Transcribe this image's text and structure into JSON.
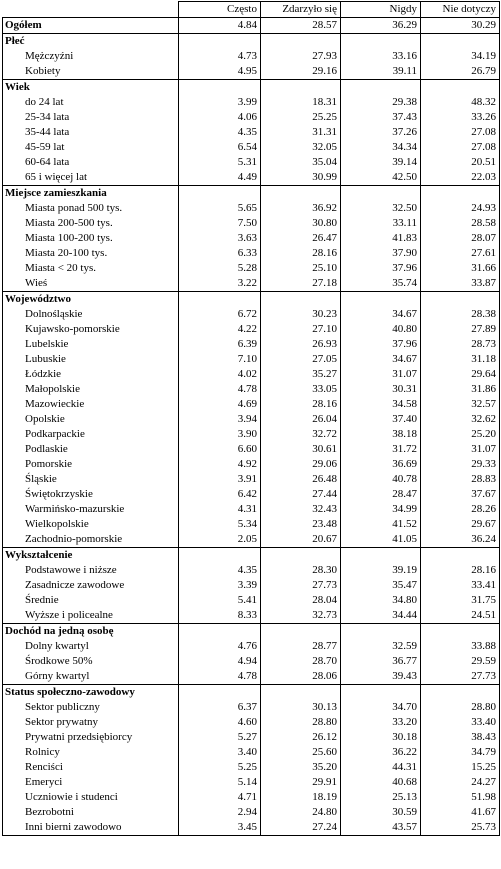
{
  "columns": [
    "Często",
    "Zdarzyło się",
    "Nigdy",
    "Nie dotyczy"
  ],
  "total": {
    "label": "Ogółem",
    "values": [
      "4.84",
      "28.57",
      "36.29",
      "30.29"
    ]
  },
  "groups": [
    {
      "title": "Płeć",
      "rows": [
        {
          "label": "Mężczyźni",
          "values": [
            "4.73",
            "27.93",
            "33.16",
            "34.19"
          ]
        },
        {
          "label": "Kobiety",
          "values": [
            "4.95",
            "29.16",
            "39.11",
            "26.79"
          ]
        }
      ]
    },
    {
      "title": "Wiek",
      "rows": [
        {
          "label": "do 24 lat",
          "values": [
            "3.99",
            "18.31",
            "29.38",
            "48.32"
          ]
        },
        {
          "label": "25-34 lata",
          "values": [
            "4.06",
            "25.25",
            "37.43",
            "33.26"
          ]
        },
        {
          "label": "35-44 lata",
          "values": [
            "4.35",
            "31.31",
            "37.26",
            "27.08"
          ]
        },
        {
          "label": "45-59 lat",
          "values": [
            "6.54",
            "32.05",
            "34.34",
            "27.08"
          ]
        },
        {
          "label": "60-64 lata",
          "values": [
            "5.31",
            "35.04",
            "39.14",
            "20.51"
          ]
        },
        {
          "label": "65 i więcej lat",
          "values": [
            "4.49",
            "30.99",
            "42.50",
            "22.03"
          ]
        }
      ]
    },
    {
      "title": "Miejsce zamieszkania",
      "rows": [
        {
          "label": "Miasta ponad 500 tys.",
          "values": [
            "5.65",
            "36.92",
            "32.50",
            "24.93"
          ]
        },
        {
          "label": "Miasta 200-500 tys.",
          "values": [
            "7.50",
            "30.80",
            "33.11",
            "28.58"
          ]
        },
        {
          "label": "Miasta 100-200 tys.",
          "values": [
            "3.63",
            "26.47",
            "41.83",
            "28.07"
          ]
        },
        {
          "label": "Miasta 20-100 tys.",
          "values": [
            "6.33",
            "28.16",
            "37.90",
            "27.61"
          ]
        },
        {
          "label": "Miasta < 20 tys.",
          "values": [
            "5.28",
            "25.10",
            "37.96",
            "31.66"
          ]
        },
        {
          "label": "Wieś",
          "values": [
            "3.22",
            "27.18",
            "35.74",
            "33.87"
          ]
        }
      ]
    },
    {
      "title": "Województwo",
      "rows": [
        {
          "label": "Dolnośląskie",
          "values": [
            "6.72",
            "30.23",
            "34.67",
            "28.38"
          ]
        },
        {
          "label": "Kujawsko-pomorskie",
          "values": [
            "4.22",
            "27.10",
            "40.80",
            "27.89"
          ]
        },
        {
          "label": "Lubelskie",
          "values": [
            "6.39",
            "26.93",
            "37.96",
            "28.73"
          ]
        },
        {
          "label": "Lubuskie",
          "values": [
            "7.10",
            "27.05",
            "34.67",
            "31.18"
          ]
        },
        {
          "label": "Łódzkie",
          "values": [
            "4.02",
            "35.27",
            "31.07",
            "29.64"
          ]
        },
        {
          "label": "Małopolskie",
          "values": [
            "4.78",
            "33.05",
            "30.31",
            "31.86"
          ]
        },
        {
          "label": "Mazowieckie",
          "values": [
            "4.69",
            "28.16",
            "34.58",
            "32.57"
          ]
        },
        {
          "label": "Opolskie",
          "values": [
            "3.94",
            "26.04",
            "37.40",
            "32.62"
          ]
        },
        {
          "label": "Podkarpackie",
          "values": [
            "3.90",
            "32.72",
            "38.18",
            "25.20"
          ]
        },
        {
          "label": "Podlaskie",
          "values": [
            "6.60",
            "30.61",
            "31.72",
            "31.07"
          ]
        },
        {
          "label": "Pomorskie",
          "values": [
            "4.92",
            "29.06",
            "36.69",
            "29.33"
          ]
        },
        {
          "label": "Śląskie",
          "values": [
            "3.91",
            "26.48",
            "40.78",
            "28.83"
          ]
        },
        {
          "label": "Świętokrzyskie",
          "values": [
            "6.42",
            "27.44",
            "28.47",
            "37.67"
          ]
        },
        {
          "label": "Warmińsko-mazurskie",
          "values": [
            "4.31",
            "32.43",
            "34.99",
            "28.26"
          ]
        },
        {
          "label": "Wielkopolskie",
          "values": [
            "5.34",
            "23.48",
            "41.52",
            "29.67"
          ]
        },
        {
          "label": "Zachodnio-pomorskie",
          "values": [
            "2.05",
            "20.67",
            "41.05",
            "36.24"
          ]
        }
      ]
    },
    {
      "title": "Wykształcenie",
      "rows": [
        {
          "label": "Podstawowe i niższe",
          "values": [
            "4.35",
            "28.30",
            "39.19",
            "28.16"
          ]
        },
        {
          "label": "Zasadnicze zawodowe",
          "values": [
            "3.39",
            "27.73",
            "35.47",
            "33.41"
          ]
        },
        {
          "label": "Średnie",
          "values": [
            "5.41",
            "28.04",
            "34.80",
            "31.75"
          ]
        },
        {
          "label": "Wyższe i policealne",
          "values": [
            "8.33",
            "32.73",
            "34.44",
            "24.51"
          ]
        }
      ]
    },
    {
      "title": "Dochód na jedną osobę",
      "rows": [
        {
          "label": "Dolny kwartyl",
          "values": [
            "4.76",
            "28.77",
            "32.59",
            "33.88"
          ]
        },
        {
          "label": "Środkowe 50%",
          "values": [
            "4.94",
            "28.70",
            "36.77",
            "29.59"
          ]
        },
        {
          "label": "Górny kwartyl",
          "values": [
            "4.78",
            "28.06",
            "39.43",
            "27.73"
          ]
        }
      ]
    },
    {
      "title": "Status społeczno-zawodowy",
      "rows": [
        {
          "label": "Sektor publiczny",
          "values": [
            "6.37",
            "30.13",
            "34.70",
            "28.80"
          ]
        },
        {
          "label": "Sektor prywatny",
          "values": [
            "4.60",
            "28.80",
            "33.20",
            "33.40"
          ]
        },
        {
          "label": "Prywatni przedsiębiorcy",
          "values": [
            "5.27",
            "26.12",
            "30.18",
            "38.43"
          ]
        },
        {
          "label": "Rolnicy",
          "values": [
            "3.40",
            "25.60",
            "36.22",
            "34.79"
          ]
        },
        {
          "label": "Renciści",
          "values": [
            "5.25",
            "35.20",
            "44.31",
            "15.25"
          ]
        },
        {
          "label": "Emeryci",
          "values": [
            "5.14",
            "29.91",
            "40.68",
            "24.27"
          ]
        },
        {
          "label": "Uczniowie i studenci",
          "values": [
            "4.71",
            "18.19",
            "25.13",
            "51.98"
          ]
        },
        {
          "label": "Bezrobotni",
          "values": [
            "2.94",
            "24.80",
            "30.59",
            "41.67"
          ]
        },
        {
          "label": "Inni bierni zawodowo",
          "values": [
            "3.45",
            "27.24",
            "43.57",
            "25.73"
          ]
        }
      ]
    }
  ]
}
